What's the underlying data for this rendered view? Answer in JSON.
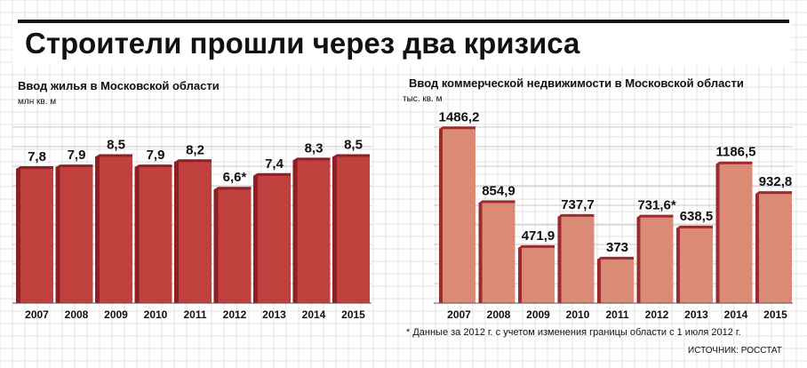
{
  "title": "Строители прошли через два кризиса",
  "colors": {
    "left_front": "#c0403e",
    "left_side": "#8f1f24",
    "right_front": "#db8a76",
    "right_side": "#9c2a2e",
    "grid": "#c8c8c8",
    "title_bar": "#161616"
  },
  "chart_data": [
    {
      "type": "bar",
      "title": "Ввод жилья в Московской области",
      "ylabel": "млн кв. м",
      "categories": [
        "2007",
        "2008",
        "2009",
        "2010",
        "2011",
        "2012",
        "2013",
        "2014",
        "2015"
      ],
      "values": [
        7.8,
        7.9,
        8.5,
        7.9,
        8.2,
        6.6,
        7.4,
        8.3,
        8.5
      ],
      "value_labels": [
        "7,8",
        "7,9",
        "8,5",
        "7,9",
        "8,2",
        "6,6*",
        "7,4",
        "8,3",
        "8,5"
      ],
      "ylim": [
        0,
        10.9
      ],
      "grid": true
    },
    {
      "type": "bar",
      "title": "Ввод коммерческой недвижимости в Московской области",
      "ylabel": "тыс. кв. м",
      "categories": [
        "2007",
        "2008",
        "2009",
        "2010",
        "2011",
        "2012",
        "2013",
        "2014",
        "2015"
      ],
      "values": [
        1486.2,
        854.9,
        471.9,
        737.7,
        373,
        731.6,
        638.5,
        1186.5,
        932.8
      ],
      "value_labels": [
        "1486,2",
        "854,9",
        "471,9",
        "737,7",
        "373",
        "731,6*",
        "638,5",
        "1186,5",
        "932,8"
      ],
      "ylim": [
        0,
        1640
      ],
      "grid": true
    }
  ],
  "footnote": "* Данные за 2012 г. с учетом изменения границы области с 1 июля 2012 г.",
  "source": "ИСТОЧНИК: РОССТАТ"
}
